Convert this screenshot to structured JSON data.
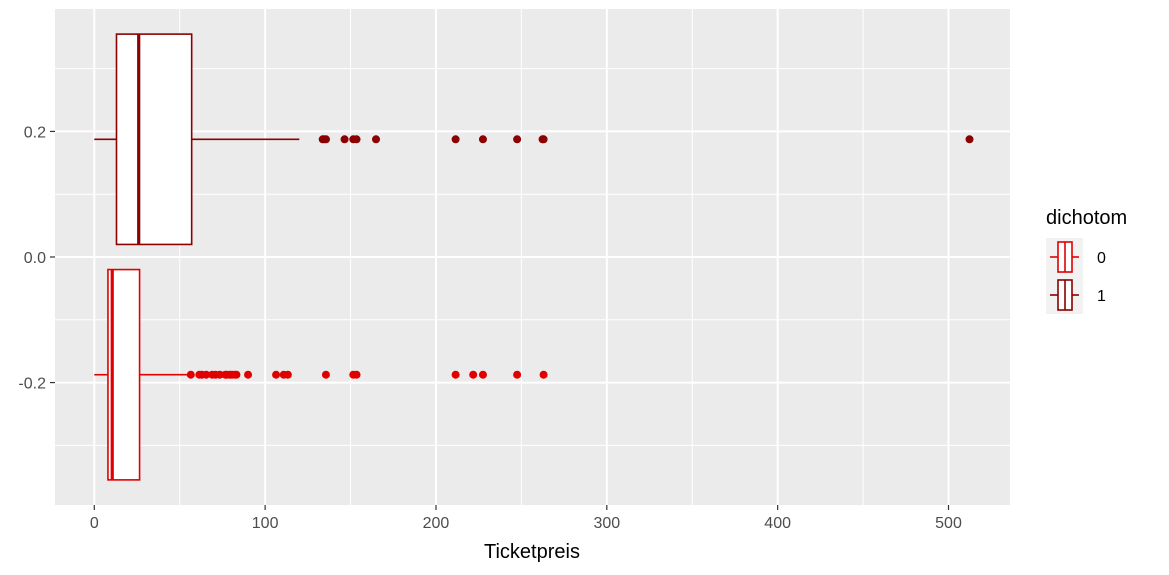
{
  "chart_data": {
    "type": "boxplot",
    "orientation": "horizontal",
    "xlabel": "Ticketpreis",
    "ylabel": "",
    "xlim": [
      -23,
      536
    ],
    "ylim": [
      -0.395,
      0.395
    ],
    "x_ticks": [
      0,
      100,
      200,
      300,
      400,
      500
    ],
    "y_ticks": [
      -0.2,
      0.0,
      0.2
    ],
    "y_tick_labels": [
      "-0.2",
      "0.0",
      "0.2"
    ],
    "grid": true,
    "legend": {
      "title": "dichotom",
      "position": "right"
    },
    "series": [
      {
        "name": "0",
        "color": "#e00000",
        "y_center": -0.1875,
        "box_halfwidth": 0.1675,
        "whisker_low": 0,
        "q1": 8.0,
        "median": 10.5,
        "q3": 26.5,
        "whisker_high": 56,
        "outliers": [
          56.5,
          61.5,
          63,
          65.5,
          69,
          71,
          73.5,
          76.7,
          77.5,
          79.2,
          80.5,
          82.2,
          83.2,
          90,
          106.4,
          110.9,
          113.3,
          135.6,
          151.6,
          153.5,
          211.5,
          221.8,
          227.5,
          247.5,
          263
        ]
      },
      {
        "name": "1",
        "color": "#8b0000",
        "y_center": 0.1875,
        "box_halfwidth": 0.1675,
        "whisker_low": 0,
        "q1": 13.0,
        "median": 26.0,
        "q3": 57.0,
        "whisker_high": 120,
        "outliers": [
          133.7,
          134.5,
          135.6,
          146.5,
          151.6,
          153.5,
          164.9,
          211.5,
          227.5,
          247.5,
          262.4,
          263,
          512.3
        ]
      }
    ]
  }
}
